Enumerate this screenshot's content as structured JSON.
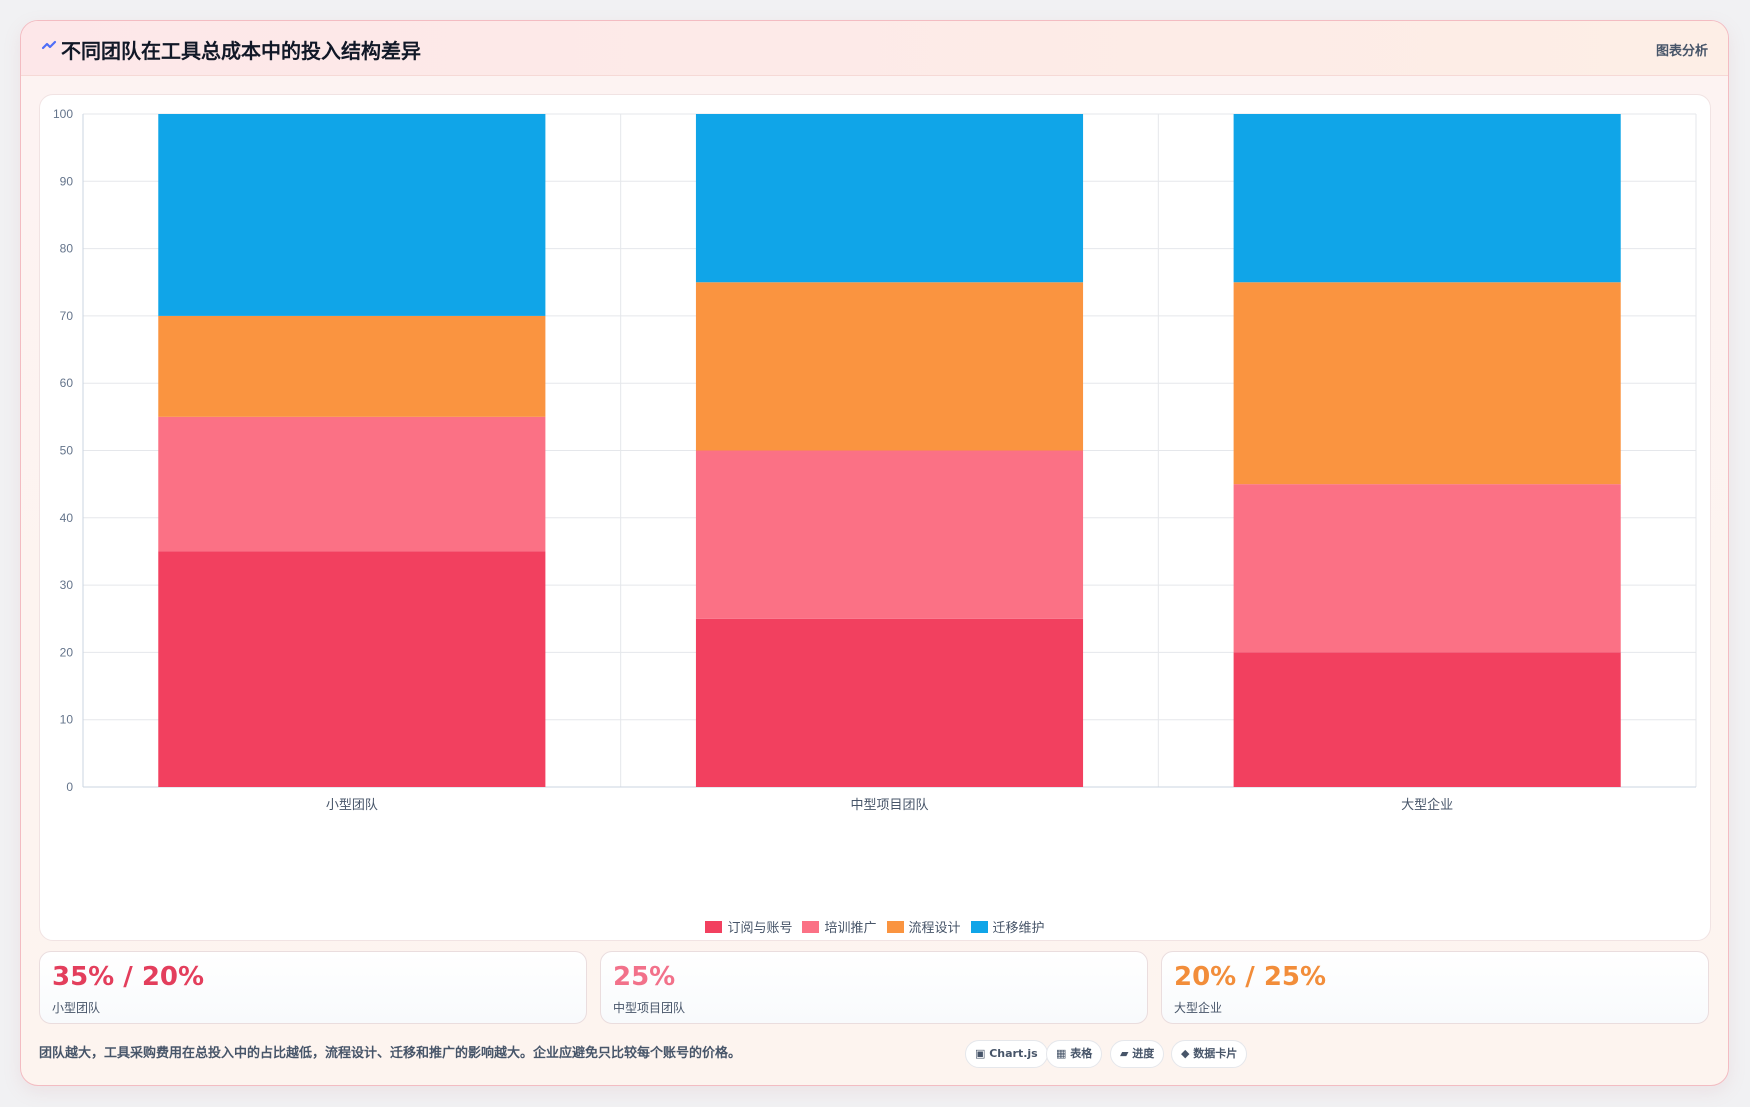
{
  "header": {
    "title": "不同团队在工具总成本中的投入结构差异",
    "tag": "图表分析",
    "icon": "chart-spark-icon"
  },
  "chart_data": {
    "type": "bar",
    "stacked": true,
    "categories": [
      "小型团队",
      "中型项目团队",
      "大型企业"
    ],
    "series": [
      {
        "name": "订阅与账号",
        "values": [
          35,
          25,
          20
        ],
        "color": "#f2405f"
      },
      {
        "name": "培训推广",
        "values": [
          20,
          25,
          25
        ],
        "color": "#fb7185"
      },
      {
        "name": "流程设计",
        "values": [
          15,
          25,
          30
        ],
        "color": "#fa9440"
      },
      {
        "name": "迁移维护",
        "values": [
          30,
          25,
          25
        ],
        "color": "#10a5e8"
      }
    ],
    "ylim": [
      0,
      100
    ],
    "yticks": [
      0,
      10,
      20,
      30,
      40,
      50,
      60,
      70,
      80,
      90,
      100
    ],
    "grid": true,
    "legend": "bottom-center"
  },
  "stats": [
    {
      "value": "35% / 20%",
      "label": "小型团队",
      "color": "#e33e5c"
    },
    {
      "value": "25%",
      "label": "中型项目团队",
      "color": "#f2718a"
    },
    {
      "value": "20% / 25%",
      "label": "大型企业",
      "color": "#f28d3a"
    }
  ],
  "note": "团队越大，工具采购费用在总投入中的占比越低，流程设计、迁移和推广的影响越大。企业应避免只比较每个账号的价格。",
  "chips": [
    {
      "label": "▣ Chart.js",
      "icon": "chart-icon"
    },
    {
      "label": "▦ 表格",
      "icon": "table-icon"
    },
    {
      "label": "▰ 进度",
      "icon": "progress-icon"
    },
    {
      "label": "◆ 数据卡片",
      "icon": "card-icon"
    }
  ]
}
